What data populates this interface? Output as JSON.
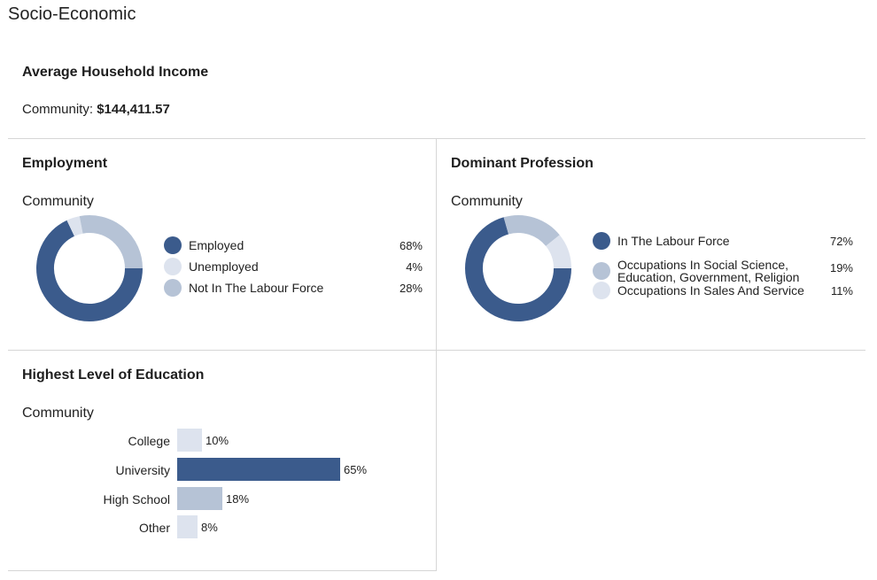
{
  "page_title": "Socio-Economic",
  "colors": {
    "dark": "#3b5b8c",
    "mid": "#b6c3d6",
    "light": "#dde3ee",
    "divider": "#d6d6d6"
  },
  "income": {
    "title": "Average Household Income",
    "label": "Community:",
    "value": "$144,411.57"
  },
  "employment": {
    "title": "Employment",
    "subtitle": "Community",
    "legend": [
      {
        "label": "Employed",
        "pct": "68%",
        "color": "dark"
      },
      {
        "label": "Unemployed",
        "pct": "4%",
        "color": "light"
      },
      {
        "label": "Not In The Labour Force",
        "pct": "28%",
        "color": "mid"
      }
    ]
  },
  "profession": {
    "title": "Dominant Profession",
    "subtitle": "Community",
    "legend": [
      {
        "label": "In The Labour Force",
        "pct": "72%",
        "color": "dark"
      },
      {
        "label": "Occupations In Social Science,",
        "label2": "Education, Government, Religion",
        "pct": "19%",
        "color": "mid"
      },
      {
        "label": "Occupations In Sales And Service",
        "pct": "11%",
        "color": "light"
      }
    ]
  },
  "education": {
    "title": "Highest Level of Education",
    "subtitle": "Community"
  },
  "chart_data": [
    {
      "type": "pie",
      "categories": [
        "Employed",
        "Unemployed",
        "Not In The Labour Force"
      ],
      "values": [
        68,
        4,
        28
      ],
      "colors": [
        "#3b5b8c",
        "#dde3ee",
        "#b6c3d6"
      ],
      "donut": true
    },
    {
      "type": "pie",
      "categories": [
        "In The Labour Force",
        "Occupations In Social Science, Education, Government, Religion",
        "Occupations In Sales And Service"
      ],
      "values": [
        72,
        19,
        11
      ],
      "colors": [
        "#3b5b8c",
        "#b6c3d6",
        "#dde3ee"
      ],
      "donut": true
    },
    {
      "type": "bar",
      "orientation": "horizontal",
      "categories": [
        "College",
        "University",
        "High School",
        "Other"
      ],
      "values": [
        10,
        65,
        18,
        8
      ],
      "value_labels": [
        "10%",
        "65%",
        "18%",
        "8%"
      ],
      "colors": [
        "#dde3ee",
        "#3b5b8c",
        "#b6c3d6",
        "#dde3ee"
      ]
    }
  ]
}
